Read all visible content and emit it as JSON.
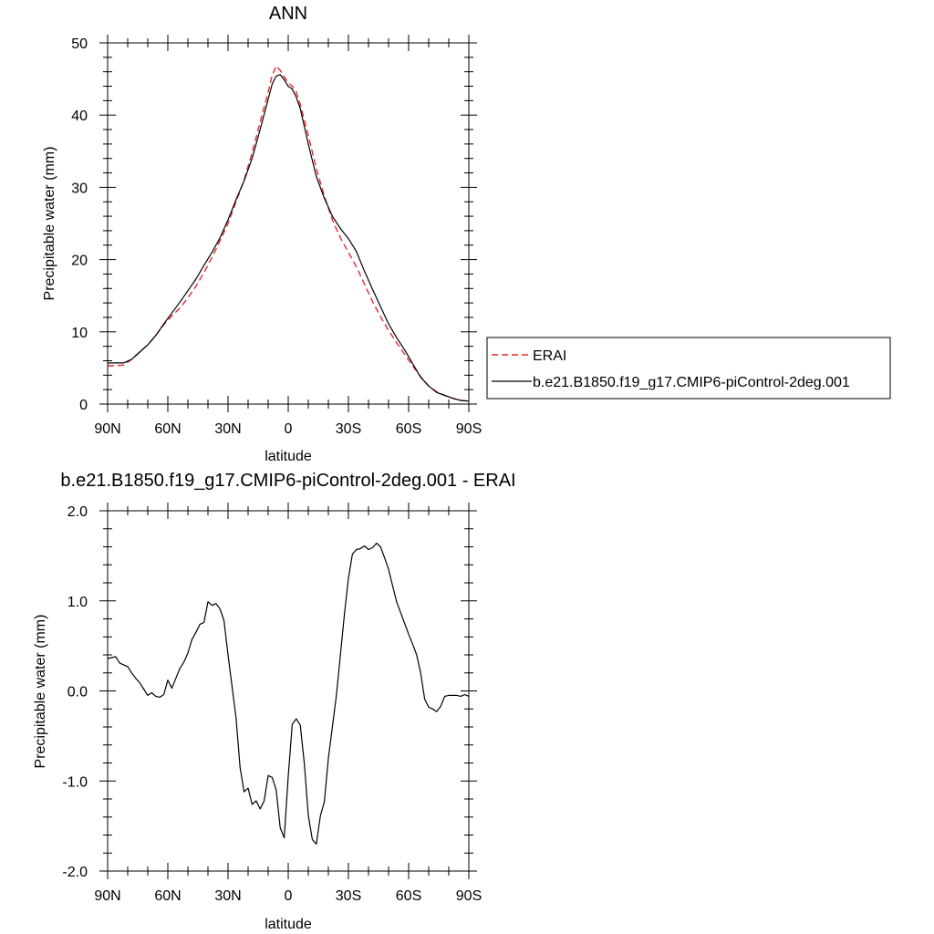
{
  "chart_data": [
    {
      "type": "line",
      "title": "ANN",
      "xlabel": "latitude",
      "ylabel": "Precipitable water (mm)",
      "xlim": [
        90,
        -90
      ],
      "ylim": [
        0,
        50
      ],
      "xticks": [
        {
          "value": 90,
          "label": "90N"
        },
        {
          "value": 60,
          "label": "60N"
        },
        {
          "value": 30,
          "label": "30N"
        },
        {
          "value": 0,
          "label": "0"
        },
        {
          "value": -30,
          "label": "30S"
        },
        {
          "value": -60,
          "label": "60S"
        },
        {
          "value": -90,
          "label": "90S"
        }
      ],
      "yticks": [
        {
          "value": 0,
          "label": "0"
        },
        {
          "value": 10,
          "label": "10"
        },
        {
          "value": 20,
          "label": "20"
        },
        {
          "value": 30,
          "label": "30"
        },
        {
          "value": 40,
          "label": "40"
        },
        {
          "value": 50,
          "label": "50"
        }
      ],
      "grid": false,
      "legend": "right",
      "series": [
        {
          "name": "ERAI",
          "color": "#e8282d",
          "dash": "dashed",
          "x": [
            90,
            86,
            82,
            78,
            74,
            70,
            66,
            62,
            58,
            54,
            50,
            46,
            42,
            38,
            34,
            30,
            26,
            22,
            18,
            14,
            10,
            8,
            6,
            4,
            2,
            0,
            -2,
            -4,
            -6,
            -10,
            -14,
            -18,
            -22,
            -26,
            -30,
            -34,
            -38,
            -42,
            -46,
            -50,
            -54,
            -58,
            -62,
            -66,
            -70,
            -74,
            -78,
            -82,
            -86,
            -90
          ],
          "y": [
            5.3,
            5.3,
            5.4,
            6.2,
            7.2,
            8.2,
            9.5,
            11.0,
            12.2,
            13.3,
            14.7,
            16.3,
            18.2,
            20.3,
            22.6,
            25.0,
            28.0,
            31.0,
            34.8,
            39.0,
            43.2,
            45.5,
            46.8,
            46.2,
            45.3,
            44.5,
            44.0,
            43.2,
            41.5,
            37.2,
            32.6,
            28.8,
            25.5,
            23.0,
            21.0,
            19.0,
            16.6,
            14.2,
            12.1,
            10.2,
            8.5,
            6.9,
            5.3,
            3.8,
            2.5,
            1.7,
            1.2,
            0.8,
            0.5,
            0.4
          ]
        },
        {
          "name": "b.e21.B1850.f19_g17.CMIP6-piControl-2deg.001",
          "color": "#000000",
          "dash": "solid",
          "x": [
            90,
            86,
            82,
            78,
            74,
            70,
            66,
            62,
            58,
            54,
            50,
            46,
            42,
            38,
            34,
            30,
            26,
            22,
            18,
            14,
            10,
            8,
            6,
            4,
            2,
            0,
            -2,
            -4,
            -6,
            -10,
            -14,
            -18,
            -22,
            -26,
            -30,
            -34,
            -38,
            -42,
            -46,
            -50,
            -54,
            -58,
            -62,
            -66,
            -70,
            -74,
            -78,
            -82,
            -86,
            -90
          ],
          "y": [
            5.7,
            5.7,
            5.7,
            6.2,
            7.2,
            8.2,
            9.5,
            11.1,
            12.6,
            14.1,
            15.7,
            17.3,
            19.2,
            21.0,
            23.0,
            25.5,
            28.3,
            30.9,
            34.0,
            38.0,
            42.2,
            44.3,
            45.4,
            45.6,
            44.9,
            44.0,
            43.6,
            42.5,
            40.9,
            36.0,
            31.5,
            28.5,
            26.0,
            24.3,
            22.9,
            21.1,
            18.4,
            15.9,
            13.5,
            11.1,
            9.2,
            7.5,
            5.6,
            3.7,
            2.5,
            1.6,
            1.2,
            0.8,
            0.5,
            0.4
          ]
        }
      ]
    },
    {
      "type": "line",
      "title": "b.e21.B1850.f19_g17.CMIP6-piControl-2deg.001 - ERAI",
      "xlabel": "latitude",
      "ylabel": "Precipitable water (mm)",
      "xlim": [
        90,
        -90
      ],
      "ylim": [
        -2.0,
        2.0
      ],
      "xticks": [
        {
          "value": 90,
          "label": "90N"
        },
        {
          "value": 60,
          "label": "60N"
        },
        {
          "value": 30,
          "label": "30N"
        },
        {
          "value": 0,
          "label": "0"
        },
        {
          "value": -30,
          "label": "30S"
        },
        {
          "value": -60,
          "label": "60S"
        },
        {
          "value": -90,
          "label": "90S"
        }
      ],
      "yticks": [
        {
          "value": -2.0,
          "label": "-2.0"
        },
        {
          "value": -1.0,
          "label": "-1.0"
        },
        {
          "value": 0.0,
          "label": "0.0"
        },
        {
          "value": 1.0,
          "label": "1.0"
        },
        {
          "value": 2.0,
          "label": "2.0"
        }
      ],
      "grid": false,
      "series": [
        {
          "name": "",
          "color": "#000000",
          "dash": "solid",
          "x": [
            90,
            88,
            86,
            84,
            82,
            80,
            78,
            76,
            74,
            72,
            70,
            68,
            66,
            64,
            62,
            60,
            58,
            56,
            54,
            52,
            50,
            48,
            46,
            44,
            42,
            40,
            38,
            36,
            34,
            32,
            30,
            28,
            26,
            24,
            22,
            20,
            18,
            16,
            14,
            12,
            10,
            8,
            6,
            4,
            2,
            0,
            -2,
            -4,
            -6,
            -8,
            -10,
            -12,
            -14,
            -16,
            -18,
            -20,
            -22,
            -24,
            -26,
            -28,
            -30,
            -32,
            -34,
            -36,
            -38,
            -40,
            -42,
            -44,
            -46,
            -48,
            -50,
            -52,
            -54,
            -56,
            -58,
            -60,
            -62,
            -64,
            -66,
            -68,
            -70,
            -72,
            -74,
            -76,
            -78,
            -80,
            -82,
            -84,
            -86,
            -88,
            -90
          ],
          "y": [
            0.36,
            0.37,
            0.38,
            0.31,
            0.29,
            0.27,
            0.2,
            0.14,
            0.09,
            0.02,
            -0.05,
            -0.02,
            -0.06,
            -0.07,
            -0.04,
            0.12,
            0.03,
            0.14,
            0.25,
            0.32,
            0.42,
            0.57,
            0.65,
            0.74,
            0.76,
            0.99,
            0.95,
            0.97,
            0.91,
            0.78,
            0.4,
            0.05,
            -0.3,
            -0.85,
            -1.12,
            -1.08,
            -1.26,
            -1.22,
            -1.31,
            -1.22,
            -0.94,
            -0.96,
            -1.1,
            -1.52,
            -1.63,
            -0.95,
            -0.37,
            -0.31,
            -0.38,
            -0.8,
            -1.38,
            -1.65,
            -1.7,
            -1.39,
            -1.23,
            -0.75,
            -0.4,
            -0.05,
            0.4,
            0.85,
            1.25,
            1.52,
            1.57,
            1.58,
            1.61,
            1.57,
            1.59,
            1.64,
            1.6,
            1.48,
            1.35,
            1.17,
            0.99,
            0.87,
            0.75,
            0.63,
            0.52,
            0.4,
            0.2,
            -0.09,
            -0.18,
            -0.2,
            -0.23,
            -0.17,
            -0.06,
            -0.05,
            -0.05,
            -0.05,
            -0.06,
            -0.04,
            -0.06
          ]
        }
      ]
    }
  ]
}
